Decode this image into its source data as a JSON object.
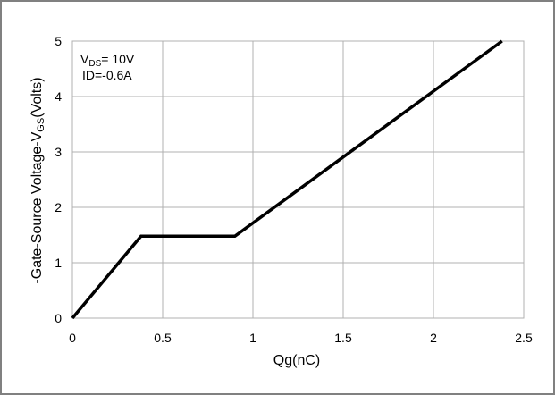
{
  "chart_data": {
    "type": "line",
    "title": "",
    "xlabel": "Qg(nC)",
    "ylabel_parts": [
      "-Gate-Source Voltage-V",
      "GS",
      "(Volts)"
    ],
    "xlim": [
      0,
      2.5
    ],
    "ylim": [
      0,
      5
    ],
    "xticks": [
      0,
      0.5,
      1,
      1.5,
      2,
      2.5
    ],
    "xtick_labels": [
      "0",
      "0.5",
      "1",
      "1.5",
      "2",
      "2.5"
    ],
    "yticks": [
      0,
      1,
      2,
      3,
      4,
      5
    ],
    "ytick_labels": [
      "0",
      "1",
      "2",
      "3",
      "4",
      "5"
    ],
    "grid": true,
    "series": [
      {
        "color": "#000000",
        "x": [
          0,
          0.38,
          0.9,
          2.38
        ],
        "y": [
          0,
          1.48,
          1.48,
          5.0
        ]
      }
    ],
    "annotations": {
      "vds": {
        "prefix": "V",
        "sub": "DS",
        "suffix": "= 10V"
      },
      "id": "ID=-0.6A"
    }
  }
}
